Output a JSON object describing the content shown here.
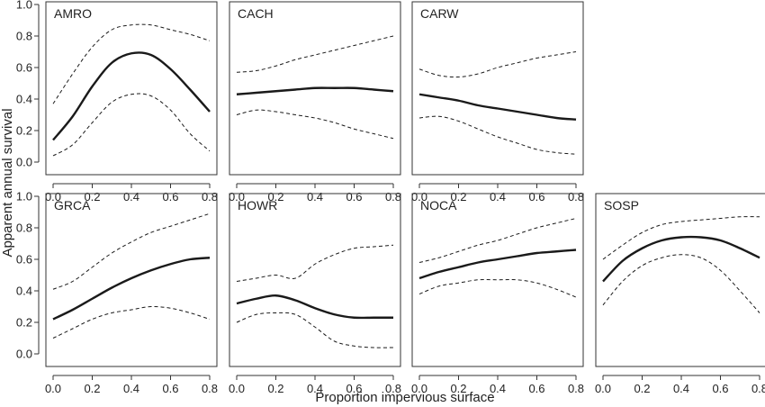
{
  "chart_data": {
    "type": "line",
    "ylabel": "Apparent annual survival",
    "xlabel": "Proportion impervious surface",
    "xlim": [
      0,
      0.8
    ],
    "ylim": [
      0,
      1.0
    ],
    "xticks": [
      "0.0",
      "0.2",
      "0.4",
      "0.6",
      "0.8"
    ],
    "yticks": [
      "0.0",
      "0.2",
      "0.4",
      "0.6",
      "0.8",
      "1.0"
    ],
    "x": [
      0,
      0.1,
      0.2,
      0.3,
      0.4,
      0.5,
      0.6,
      0.7,
      0.8
    ],
    "grid": false,
    "panels": [
      {
        "title": "AMRO",
        "estimate": [
          0.14,
          0.29,
          0.48,
          0.63,
          0.69,
          0.68,
          0.59,
          0.46,
          0.32
        ],
        "lower": [
          0.04,
          0.11,
          0.25,
          0.38,
          0.43,
          0.42,
          0.33,
          0.18,
          0.07
        ],
        "upper": [
          0.37,
          0.56,
          0.73,
          0.84,
          0.87,
          0.87,
          0.84,
          0.81,
          0.77
        ]
      },
      {
        "title": "CACH",
        "estimate": [
          0.43,
          0.44,
          0.45,
          0.46,
          0.47,
          0.47,
          0.47,
          0.46,
          0.45
        ],
        "lower": [
          0.3,
          0.33,
          0.32,
          0.3,
          0.28,
          0.25,
          0.21,
          0.18,
          0.15
        ],
        "upper": [
          0.57,
          0.58,
          0.61,
          0.65,
          0.68,
          0.71,
          0.74,
          0.77,
          0.8
        ]
      },
      {
        "title": "CARW",
        "estimate": [
          0.43,
          0.41,
          0.39,
          0.36,
          0.34,
          0.32,
          0.3,
          0.28,
          0.27
        ],
        "lower": [
          0.28,
          0.29,
          0.26,
          0.21,
          0.16,
          0.12,
          0.08,
          0.06,
          0.05
        ],
        "upper": [
          0.59,
          0.55,
          0.54,
          0.56,
          0.6,
          0.63,
          0.66,
          0.68,
          0.7
        ]
      },
      {
        "title": "GRCA",
        "estimate": [
          0.22,
          0.28,
          0.35,
          0.42,
          0.48,
          0.53,
          0.57,
          0.6,
          0.61
        ],
        "lower": [
          0.1,
          0.16,
          0.22,
          0.26,
          0.28,
          0.3,
          0.29,
          0.26,
          0.22
        ],
        "upper": [
          0.41,
          0.46,
          0.55,
          0.64,
          0.71,
          0.77,
          0.81,
          0.85,
          0.89
        ]
      },
      {
        "title": "HOWR",
        "estimate": [
          0.32,
          0.35,
          0.37,
          0.34,
          0.29,
          0.25,
          0.23,
          0.23,
          0.23
        ],
        "lower": [
          0.2,
          0.25,
          0.26,
          0.25,
          0.17,
          0.08,
          0.05,
          0.04,
          0.04
        ],
        "upper": [
          0.46,
          0.48,
          0.5,
          0.48,
          0.57,
          0.63,
          0.67,
          0.68,
          0.69
        ]
      },
      {
        "title": "NOCA",
        "estimate": [
          0.48,
          0.52,
          0.55,
          0.58,
          0.6,
          0.62,
          0.64,
          0.65,
          0.66
        ],
        "lower": [
          0.38,
          0.43,
          0.45,
          0.47,
          0.47,
          0.47,
          0.45,
          0.41,
          0.36
        ],
        "upper": [
          0.58,
          0.61,
          0.65,
          0.69,
          0.72,
          0.76,
          0.8,
          0.83,
          0.86
        ]
      },
      {
        "title": "SOSP",
        "estimate": [
          0.46,
          0.59,
          0.67,
          0.72,
          0.74,
          0.74,
          0.72,
          0.67,
          0.61
        ],
        "lower": [
          0.31,
          0.46,
          0.56,
          0.61,
          0.63,
          0.61,
          0.53,
          0.4,
          0.26
        ],
        "upper": [
          0.6,
          0.69,
          0.77,
          0.82,
          0.84,
          0.85,
          0.86,
          0.87,
          0.87
        ]
      }
    ]
  }
}
